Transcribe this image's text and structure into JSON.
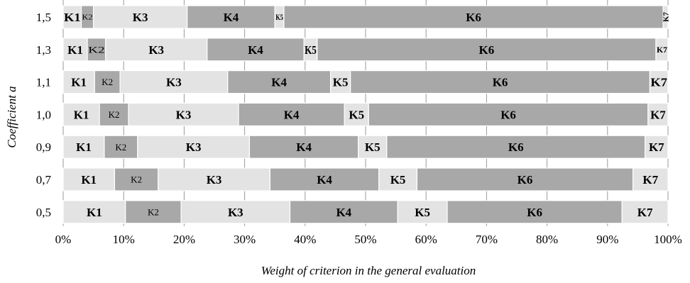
{
  "chart_data": {
    "type": "bar",
    "orientation": "horizontal",
    "stacked": true,
    "normalized_percent": true,
    "xlabel": "Weight of criterion in the general evaluation",
    "ylabel": "Coefficient a",
    "xlim": [
      0,
      100
    ],
    "x_ticks": [
      "0%",
      "10%",
      "20%",
      "30%",
      "40%",
      "50%",
      "60%",
      "70%",
      "80%",
      "90%",
      "100%"
    ],
    "grid": "vertical",
    "legend": "none",
    "categories": [
      "1,5",
      "1,3",
      "1,1",
      "1,0",
      "0,9",
      "0,7",
      "0,5"
    ],
    "series": [
      {
        "name": "K1",
        "color": "#e3e3e3",
        "values": [
          3.0,
          4.0,
          5.2,
          6.0,
          6.8,
          8.5,
          10.3
        ]
      },
      {
        "name": "K2",
        "color": "#a8a8a8",
        "values": [
          2.0,
          3.0,
          4.2,
          4.8,
          5.5,
          7.2,
          9.2
        ]
      },
      {
        "name": "K3",
        "color": "#e3e3e3",
        "values": [
          15.5,
          16.8,
          17.8,
          18.2,
          18.5,
          18.5,
          18.0
        ]
      },
      {
        "name": "K4",
        "color": "#a8a8a8",
        "values": [
          14.5,
          16.0,
          17.0,
          17.5,
          18.0,
          18.0,
          17.8
        ]
      },
      {
        "name": "K5",
        "color": "#e3e3e3",
        "values": [
          1.5,
          2.2,
          3.3,
          4.0,
          4.7,
          6.3,
          8.2
        ]
      },
      {
        "name": "K6",
        "color": "#a8a8a8",
        "values": [
          62.7,
          56.0,
          49.5,
          46.2,
          42.7,
          35.7,
          28.9
        ]
      },
      {
        "name": "K7",
        "color": "#e3e3e3",
        "values": [
          0.8,
          2.0,
          3.0,
          3.3,
          3.8,
          5.8,
          7.6
        ]
      }
    ]
  }
}
